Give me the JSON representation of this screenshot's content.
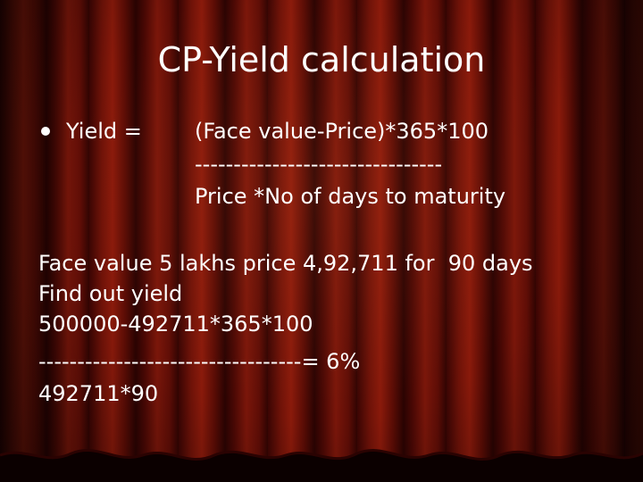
{
  "slide": {
    "title": "CP-Yield calculation",
    "bullet": {
      "label": "Yield =",
      "numerator": "(Face value-Price)*365*100",
      "divider": "--------------------------------",
      "denominator": "Price *No of days to maturity"
    },
    "example": {
      "line1": "Face value 5 lakhs price 4,92,711 for  90 days",
      "line2": "Find out yield",
      "line3": "500000-492711*365*100",
      "line4": "----------------------------------= 6%",
      "line5": "492711*90"
    }
  }
}
